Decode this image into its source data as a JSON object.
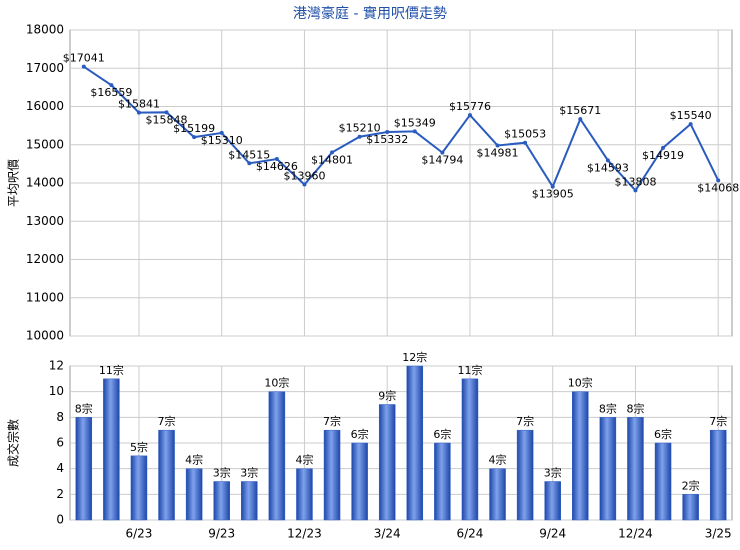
{
  "chart_data": [
    {
      "type": "line",
      "title": "港灣豪庭 - 實用呎價走勢",
      "ylabel": "平均呎價",
      "values": [
        17041,
        16559,
        15841,
        15848,
        15199,
        15310,
        14515,
        14626,
        13960,
        14801,
        15210,
        15332,
        15349,
        14794,
        15776,
        14981,
        15053,
        13905,
        15671,
        14593,
        13808,
        14919,
        15540,
        14068
      ],
      "value_labels": [
        "$17041",
        "$16559",
        "$15841",
        "$15848",
        "$15199",
        "$15310",
        "$14515",
        "$14626",
        "$13960",
        "$14801",
        "$15210",
        "$15332",
        "$15349",
        "$14794",
        "$15776",
        "$14981",
        "$15053",
        "$13905",
        "$15671",
        "$14593",
        "$13808",
        "$14919",
        "$15540",
        "$14068"
      ],
      "color": "#2a5cc0",
      "ylim": [
        10000,
        18000
      ],
      "yticks": [
        10000,
        11000,
        12000,
        13000,
        14000,
        15000,
        16000,
        17000,
        18000
      ],
      "grid": true
    },
    {
      "type": "bar",
      "ylabel": "成交宗數",
      "categories": [
        null,
        null,
        "6/23",
        null,
        null,
        "9/23",
        null,
        null,
        "12/23",
        null,
        null,
        "3/24",
        null,
        null,
        "6/24",
        null,
        null,
        "9/24",
        null,
        null,
        "12/24",
        null,
        null,
        "3/25"
      ],
      "values": [
        8,
        11,
        5,
        7,
        4,
        3,
        3,
        10,
        4,
        7,
        6,
        9,
        12,
        6,
        11,
        4,
        7,
        3,
        10,
        8,
        8,
        6,
        2,
        7
      ],
      "value_labels": [
        "8宗",
        "11宗",
        "5宗",
        "7宗",
        "4宗",
        "3宗",
        "3宗",
        "10宗",
        "4宗",
        "7宗",
        "6宗",
        "9宗",
        "12宗",
        "6宗",
        "11宗",
        "4宗",
        "7宗",
        "3宗",
        "10宗",
        "8宗",
        "8宗",
        "6宗",
        "2宗",
        "7宗"
      ],
      "color": "#2f5fc4",
      "ylim": [
        0,
        12
      ],
      "yticks": [
        0,
        2,
        4,
        6,
        8,
        10,
        12
      ],
      "grid": true
    }
  ]
}
